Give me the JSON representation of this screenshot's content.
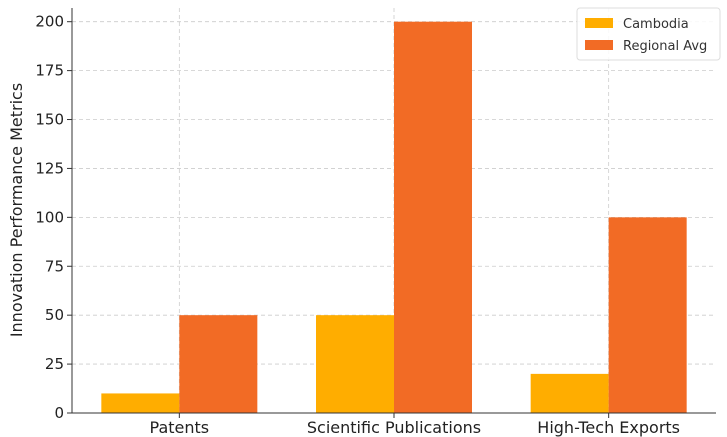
{
  "chart_data": {
    "type": "bar",
    "categories": [
      "Patents",
      "Scientific Publications",
      "High-Tech Exports"
    ],
    "series": [
      {
        "name": "Cambodia",
        "values": [
          10,
          50,
          20
        ],
        "color": "#ffad00"
      },
      {
        "name": "Regional Avg",
        "values": [
          50,
          200,
          100
        ],
        "color": "#f26b25"
      }
    ],
    "ylabel": "Innovation Performance Metrics",
    "xlabel": "",
    "ylim": [
      0,
      207
    ],
    "yticks": [
      0,
      25,
      50,
      75,
      100,
      125,
      150,
      175,
      200
    ],
    "grid": true,
    "legend_position": "top-right"
  }
}
